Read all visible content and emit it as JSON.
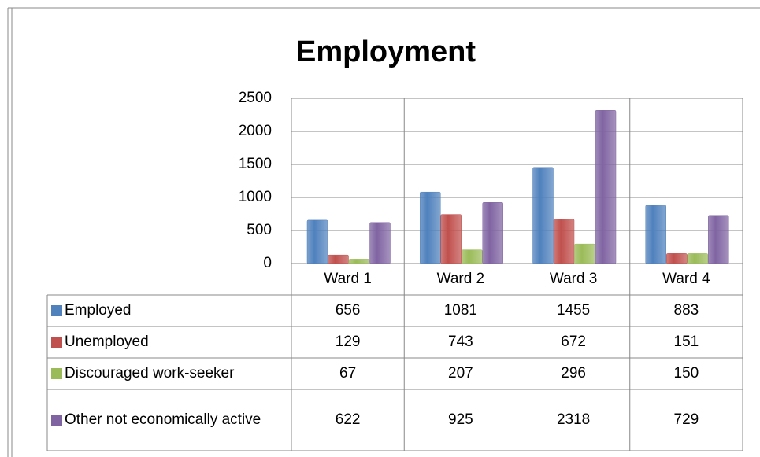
{
  "chart_data": {
    "type": "bar",
    "title": "Employment",
    "categories": [
      "Ward 1",
      "Ward 2",
      "Ward 3",
      "Ward 4"
    ],
    "series": [
      {
        "name": "Employed",
        "color": "#4f81bd",
        "values": [
          656,
          1081,
          1455,
          883
        ]
      },
      {
        "name": "Unemployed",
        "color": "#c0504d",
        "values": [
          129,
          743,
          672,
          151
        ]
      },
      {
        "name": "Discouraged work-seeker",
        "color": "#9bbb59",
        "values": [
          67,
          207,
          296,
          150
        ]
      },
      {
        "name": "Other not economically active",
        "color": "#8064a2",
        "values": [
          622,
          925,
          2318,
          729
        ]
      }
    ],
    "ylim": [
      0,
      2500
    ],
    "yticks": [
      0,
      500,
      1000,
      1500,
      2000,
      2500
    ],
    "grid": true
  }
}
